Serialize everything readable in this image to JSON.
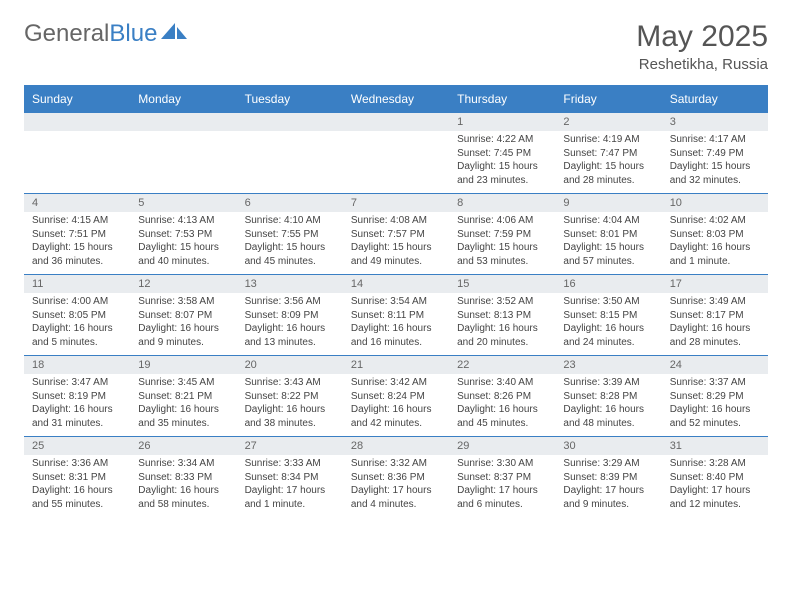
{
  "brand": {
    "part1": "General",
    "part2": "Blue"
  },
  "title": "May 2025",
  "location": "Reshetikha, Russia",
  "dow": [
    "Sunday",
    "Monday",
    "Tuesday",
    "Wednesday",
    "Thursday",
    "Friday",
    "Saturday"
  ],
  "colors": {
    "accent": "#3a7fc4",
    "header_gray": "#e9ecef",
    "text": "#444444",
    "bg": "#ffffff"
  },
  "typography": {
    "title_fontsize": 30,
    "location_fontsize": 15,
    "dow_fontsize": 12,
    "daynum_fontsize": 11,
    "cell_fontsize": 10
  },
  "weeks": [
    {
      "nums": [
        "",
        "",
        "",
        "",
        "1",
        "2",
        "3"
      ],
      "cells": [
        {
          "sunrise": "",
          "sunset": "",
          "daylight": ""
        },
        {
          "sunrise": "",
          "sunset": "",
          "daylight": ""
        },
        {
          "sunrise": "",
          "sunset": "",
          "daylight": ""
        },
        {
          "sunrise": "",
          "sunset": "",
          "daylight": ""
        },
        {
          "sunrise": "Sunrise: 4:22 AM",
          "sunset": "Sunset: 7:45 PM",
          "daylight": "Daylight: 15 hours and 23 minutes."
        },
        {
          "sunrise": "Sunrise: 4:19 AM",
          "sunset": "Sunset: 7:47 PM",
          "daylight": "Daylight: 15 hours and 28 minutes."
        },
        {
          "sunrise": "Sunrise: 4:17 AM",
          "sunset": "Sunset: 7:49 PM",
          "daylight": "Daylight: 15 hours and 32 minutes."
        }
      ]
    },
    {
      "nums": [
        "4",
        "5",
        "6",
        "7",
        "8",
        "9",
        "10"
      ],
      "cells": [
        {
          "sunrise": "Sunrise: 4:15 AM",
          "sunset": "Sunset: 7:51 PM",
          "daylight": "Daylight: 15 hours and 36 minutes."
        },
        {
          "sunrise": "Sunrise: 4:13 AM",
          "sunset": "Sunset: 7:53 PM",
          "daylight": "Daylight: 15 hours and 40 minutes."
        },
        {
          "sunrise": "Sunrise: 4:10 AM",
          "sunset": "Sunset: 7:55 PM",
          "daylight": "Daylight: 15 hours and 45 minutes."
        },
        {
          "sunrise": "Sunrise: 4:08 AM",
          "sunset": "Sunset: 7:57 PM",
          "daylight": "Daylight: 15 hours and 49 minutes."
        },
        {
          "sunrise": "Sunrise: 4:06 AM",
          "sunset": "Sunset: 7:59 PM",
          "daylight": "Daylight: 15 hours and 53 minutes."
        },
        {
          "sunrise": "Sunrise: 4:04 AM",
          "sunset": "Sunset: 8:01 PM",
          "daylight": "Daylight: 15 hours and 57 minutes."
        },
        {
          "sunrise": "Sunrise: 4:02 AM",
          "sunset": "Sunset: 8:03 PM",
          "daylight": "Daylight: 16 hours and 1 minute."
        }
      ]
    },
    {
      "nums": [
        "11",
        "12",
        "13",
        "14",
        "15",
        "16",
        "17"
      ],
      "cells": [
        {
          "sunrise": "Sunrise: 4:00 AM",
          "sunset": "Sunset: 8:05 PM",
          "daylight": "Daylight: 16 hours and 5 minutes."
        },
        {
          "sunrise": "Sunrise: 3:58 AM",
          "sunset": "Sunset: 8:07 PM",
          "daylight": "Daylight: 16 hours and 9 minutes."
        },
        {
          "sunrise": "Sunrise: 3:56 AM",
          "sunset": "Sunset: 8:09 PM",
          "daylight": "Daylight: 16 hours and 13 minutes."
        },
        {
          "sunrise": "Sunrise: 3:54 AM",
          "sunset": "Sunset: 8:11 PM",
          "daylight": "Daylight: 16 hours and 16 minutes."
        },
        {
          "sunrise": "Sunrise: 3:52 AM",
          "sunset": "Sunset: 8:13 PM",
          "daylight": "Daylight: 16 hours and 20 minutes."
        },
        {
          "sunrise": "Sunrise: 3:50 AM",
          "sunset": "Sunset: 8:15 PM",
          "daylight": "Daylight: 16 hours and 24 minutes."
        },
        {
          "sunrise": "Sunrise: 3:49 AM",
          "sunset": "Sunset: 8:17 PM",
          "daylight": "Daylight: 16 hours and 28 minutes."
        }
      ]
    },
    {
      "nums": [
        "18",
        "19",
        "20",
        "21",
        "22",
        "23",
        "24"
      ],
      "cells": [
        {
          "sunrise": "Sunrise: 3:47 AM",
          "sunset": "Sunset: 8:19 PM",
          "daylight": "Daylight: 16 hours and 31 minutes."
        },
        {
          "sunrise": "Sunrise: 3:45 AM",
          "sunset": "Sunset: 8:21 PM",
          "daylight": "Daylight: 16 hours and 35 minutes."
        },
        {
          "sunrise": "Sunrise: 3:43 AM",
          "sunset": "Sunset: 8:22 PM",
          "daylight": "Daylight: 16 hours and 38 minutes."
        },
        {
          "sunrise": "Sunrise: 3:42 AM",
          "sunset": "Sunset: 8:24 PM",
          "daylight": "Daylight: 16 hours and 42 minutes."
        },
        {
          "sunrise": "Sunrise: 3:40 AM",
          "sunset": "Sunset: 8:26 PM",
          "daylight": "Daylight: 16 hours and 45 minutes."
        },
        {
          "sunrise": "Sunrise: 3:39 AM",
          "sunset": "Sunset: 8:28 PM",
          "daylight": "Daylight: 16 hours and 48 minutes."
        },
        {
          "sunrise": "Sunrise: 3:37 AM",
          "sunset": "Sunset: 8:29 PM",
          "daylight": "Daylight: 16 hours and 52 minutes."
        }
      ]
    },
    {
      "nums": [
        "25",
        "26",
        "27",
        "28",
        "29",
        "30",
        "31"
      ],
      "cells": [
        {
          "sunrise": "Sunrise: 3:36 AM",
          "sunset": "Sunset: 8:31 PM",
          "daylight": "Daylight: 16 hours and 55 minutes."
        },
        {
          "sunrise": "Sunrise: 3:34 AM",
          "sunset": "Sunset: 8:33 PM",
          "daylight": "Daylight: 16 hours and 58 minutes."
        },
        {
          "sunrise": "Sunrise: 3:33 AM",
          "sunset": "Sunset: 8:34 PM",
          "daylight": "Daylight: 17 hours and 1 minute."
        },
        {
          "sunrise": "Sunrise: 3:32 AM",
          "sunset": "Sunset: 8:36 PM",
          "daylight": "Daylight: 17 hours and 4 minutes."
        },
        {
          "sunrise": "Sunrise: 3:30 AM",
          "sunset": "Sunset: 8:37 PM",
          "daylight": "Daylight: 17 hours and 6 minutes."
        },
        {
          "sunrise": "Sunrise: 3:29 AM",
          "sunset": "Sunset: 8:39 PM",
          "daylight": "Daylight: 17 hours and 9 minutes."
        },
        {
          "sunrise": "Sunrise: 3:28 AM",
          "sunset": "Sunset: 8:40 PM",
          "daylight": "Daylight: 17 hours and 12 minutes."
        }
      ]
    }
  ]
}
